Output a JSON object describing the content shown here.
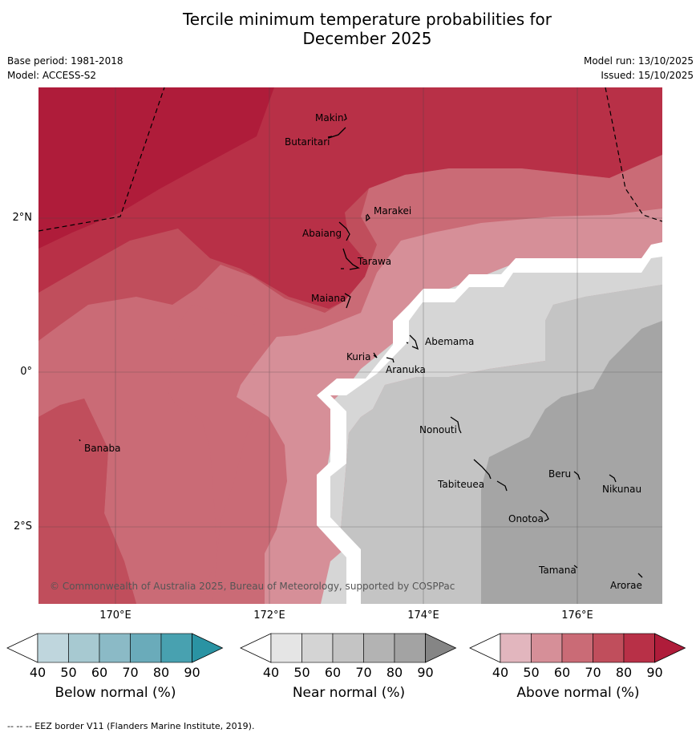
{
  "title_line1": "Tercile minimum temperature probabilities for",
  "title_line2": "December 2025",
  "meta_left": [
    "Base period: 1981-2018",
    "Model: ACCESS-S2"
  ],
  "meta_right": [
    "Model run: 13/10/2025",
    "Issued: 15/10/2025"
  ],
  "copyright": "© Commonwealth of Australia 2025, Bureau of Meteorology, supported by COSPPac",
  "footer": "-- -- -- EEZ border V11 (Flanders Marine Institute, 2019).",
  "longitude_labels": [
    "170°E",
    "172°E",
    "174°E",
    "176°E"
  ],
  "latitude_labels": [
    "2°N",
    "0°",
    "2°S"
  ],
  "islands": [
    "Makin",
    "Butaritari",
    "Marakei",
    "Abaiang",
    "Tarawa",
    "Maiana",
    "Abemama",
    "Kuria",
    "Aranuka",
    "Banaba",
    "Nonouti",
    "Tabiteuea",
    "Beru",
    "Nikunau",
    "Onotoa",
    "Tamana",
    "Arorae"
  ],
  "colorbars": [
    {
      "title": "Below normal (%)",
      "ticks": [
        "40",
        "50",
        "60",
        "70",
        "80",
        "90"
      ],
      "colors": [
        "#ffffff",
        "#bfd6dd",
        "#a7c9d1",
        "#8bbac6",
        "#6aabba",
        "#48a1b0",
        "#2a93a3"
      ]
    },
    {
      "title": "Near normal (%)",
      "ticks": [
        "40",
        "50",
        "60",
        "70",
        "80",
        "90"
      ],
      "colors": [
        "#ffffff",
        "#e5e5e5",
        "#d4d4d4",
        "#c4c4c4",
        "#b3b3b3",
        "#a3a3a3",
        "#858585"
      ]
    },
    {
      "title": "Above normal (%)",
      "ticks": [
        "40",
        "50",
        "60",
        "70",
        "80",
        "90"
      ],
      "colors": [
        "#ffffff",
        "#e2b6be",
        "#d68f98",
        "#ca6b76",
        "#c04e5c",
        "#b83047",
        "#af1c3a"
      ]
    }
  ],
  "map_colors": {
    "above_90": "#af1c3a",
    "above_80": "#b83047",
    "above_70": "#c04e5c",
    "above_60": "#ca6b76",
    "above_50": "#d68f98",
    "near_60": "#d6d6d6",
    "near_70": "#c4c4c4",
    "near_80": "#a5a5a5"
  }
}
